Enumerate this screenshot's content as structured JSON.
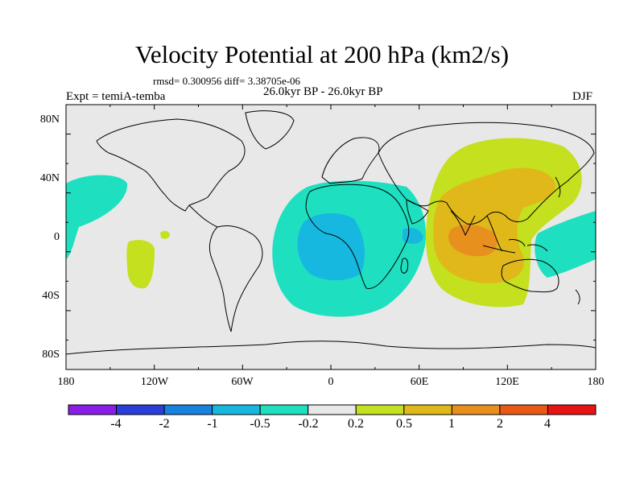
{
  "title": "Velocity Potential at 200 hPa (km2/s)",
  "stats": "rmsd= 0.300956 diff= 3.38705e-06",
  "experiment": "Expt = temiA-temba",
  "period": "26.0kyr BP - 26.0kyr BP",
  "season": "DJF",
  "y_axis_labels": [
    "80N",
    "40N",
    "0",
    "40S",
    "80S"
  ],
  "x_axis_labels": [
    "180",
    "120W",
    "60W",
    "0",
    "60E",
    "120E",
    "180"
  ],
  "colorbar": {
    "labels": [
      "-4",
      "-2",
      "-1",
      "-0.5",
      "-0.2",
      "0.2",
      "0.5",
      "1",
      "2",
      "4"
    ],
    "colors": [
      "#8a1ee6",
      "#2a3fd9",
      "#1782e0",
      "#17b8e0",
      "#1ee0c0",
      "#e8e8e8",
      "#c4e01e",
      "#e0b81a",
      "#e8901e",
      "#e85a14",
      "#e61414"
    ]
  },
  "colors": {
    "ocean": "#e8e8e8",
    "neg_02_05": "#1ee0c0",
    "neg_05_1": "#17b8e0",
    "pos_02_05": "#c4e01e",
    "pos_05_1": "#e0b81a",
    "pos_1_2": "#e8901e"
  }
}
